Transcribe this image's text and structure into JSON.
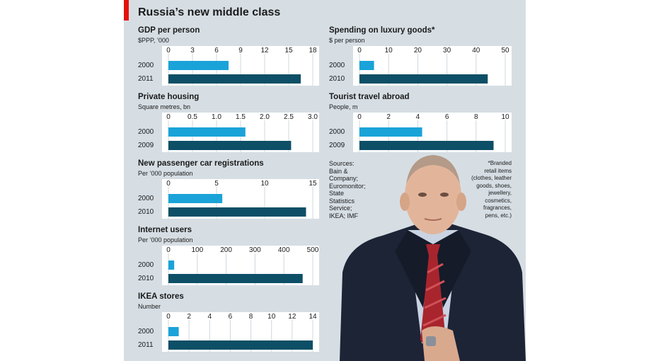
{
  "header": {
    "title": "Russia’s new middle class"
  },
  "colors": {
    "bar_first": "#1aa3d9",
    "bar_second": "#0d4f66",
    "background": "#d6dee4",
    "accent": "#e3120b"
  },
  "chart_data": [
    {
      "type": "bar",
      "orientation": "horizontal",
      "title": "GDP per person",
      "subtitle": "$PPP, ’000",
      "categories": [
        "2000",
        "2011"
      ],
      "values": [
        7.5,
        16.5
      ],
      "xlim": [
        0,
        18
      ],
      "ticks": [
        0,
        3,
        6,
        9,
        12,
        15,
        18
      ],
      "tick_labels": [
        "0",
        "3",
        "6",
        "9",
        "12",
        "15",
        "18"
      ]
    },
    {
      "type": "bar",
      "orientation": "horizontal",
      "title": "Spending on luxury goods*",
      "subtitle": "$ per person",
      "categories": [
        "2000",
        "2010"
      ],
      "values": [
        5,
        44
      ],
      "xlim": [
        0,
        50
      ],
      "ticks": [
        0,
        10,
        20,
        30,
        40,
        50
      ],
      "tick_labels": [
        "0",
        "10",
        "20",
        "30",
        "40",
        "50"
      ]
    },
    {
      "type": "bar",
      "orientation": "horizontal",
      "title": "Private housing",
      "subtitle": "Square metres, bn",
      "categories": [
        "2000",
        "2009"
      ],
      "values": [
        1.6,
        2.55
      ],
      "xlim": [
        0,
        3.0
      ],
      "ticks": [
        0,
        0.5,
        1.0,
        1.5,
        2.0,
        2.5,
        3.0
      ],
      "tick_labels": [
        "0",
        "0.5",
        "1.0",
        "1.5",
        "2.0",
        "2.5",
        "3.0"
      ]
    },
    {
      "type": "bar",
      "orientation": "horizontal",
      "title": "Tourist travel abroad",
      "subtitle": "People, m",
      "categories": [
        "2000",
        "2009"
      ],
      "values": [
        4.3,
        9.2
      ],
      "xlim": [
        0,
        10
      ],
      "ticks": [
        0,
        2,
        4,
        6,
        8,
        10
      ],
      "tick_labels": [
        "0",
        "2",
        "4",
        "6",
        "8",
        "10"
      ]
    },
    {
      "type": "bar",
      "orientation": "horizontal",
      "title": "New passenger car registrations",
      "subtitle": "Per ’000 population",
      "categories": [
        "2000",
        "2010"
      ],
      "values": [
        5.6,
        14.3
      ],
      "xlim": [
        0,
        15
      ],
      "ticks": [
        0,
        5,
        10,
        15
      ],
      "tick_labels": [
        "0",
        "5",
        "10",
        "15"
      ]
    },
    {
      "type": "bar",
      "orientation": "horizontal",
      "title": "Internet users",
      "subtitle": "Per ’000 population",
      "categories": [
        "2000",
        "2010"
      ],
      "values": [
        20,
        465
      ],
      "xlim": [
        0,
        500
      ],
      "ticks": [
        0,
        100,
        200,
        300,
        400,
        500
      ],
      "tick_labels": [
        "0",
        "100",
        "200",
        "300",
        "400",
        "500"
      ]
    },
    {
      "type": "bar",
      "orientation": "horizontal",
      "title": "IKEA stores",
      "subtitle": "Number",
      "categories": [
        "2000",
        "2011"
      ],
      "values": [
        1,
        14
      ],
      "xlim": [
        0,
        14
      ],
      "ticks": [
        0,
        2,
        4,
        6,
        8,
        10,
        12,
        14
      ],
      "tick_labels": [
        "0",
        "2",
        "4",
        "6",
        "8",
        "10",
        "12",
        "14"
      ]
    }
  ],
  "sources": [
    "Sources:",
    "Bain &",
    "Company;",
    "Euromonitor;",
    "State",
    "Statistics",
    "Service;",
    "IKEA; IMF"
  ],
  "footnote": [
    "*Branded",
    "retail items",
    "(clothes, leather",
    "goods, shoes,",
    "jewellery,",
    "cosmetics,",
    "fragrances,",
    "pens, etc.)"
  ]
}
